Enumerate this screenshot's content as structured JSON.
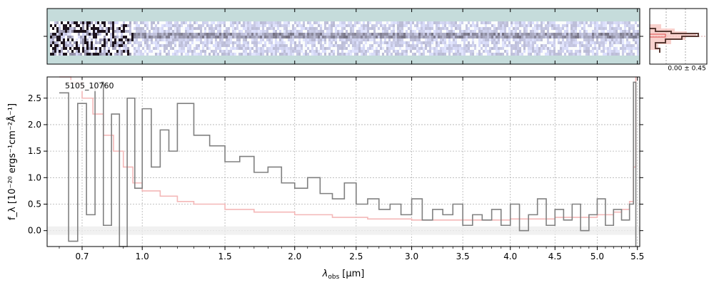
{
  "chart_data": {
    "type": "line",
    "object_label": "5105_10760",
    "xlabel_main": "λ",
    "xlabel_sub": "obs",
    "xlabel_unit": "[μm]",
    "ylabel": "f_λ [10⁻²⁰ ergs⁻¹cm⁻²Å⁻¹]",
    "xscale": "power-0.5",
    "xlim": [
      0.55,
      5.53
    ],
    "ylim": [
      -0.3,
      2.9
    ],
    "grid": true,
    "x_ticks": [
      {
        "v": 0.7,
        "label": "0.7"
      },
      {
        "v": 1.0,
        "label": "1.0"
      },
      {
        "v": 1.5,
        "label": "1.5"
      },
      {
        "v": 2.0,
        "label": "2.0"
      },
      {
        "v": 2.5,
        "label": "2.5"
      },
      {
        "v": 3.0,
        "label": "3.0"
      },
      {
        "v": 3.5,
        "label": "3.5"
      },
      {
        "v": 4.0,
        "label": "4.0"
      },
      {
        "v": 4.5,
        "label": "4.5"
      },
      {
        "v": 5.0,
        "label": "5.0"
      },
      {
        "v": 5.5,
        "label": "5.5"
      }
    ],
    "y_ticks": [
      {
        "v": 0.0,
        "label": "0.0"
      },
      {
        "v": 0.5,
        "label": "0.5"
      },
      {
        "v": 1.0,
        "label": "1.0"
      },
      {
        "v": 1.5,
        "label": "1.5"
      },
      {
        "v": 2.0,
        "label": "2.0"
      },
      {
        "v": 2.5,
        "label": "2.5"
      }
    ],
    "series": [
      {
        "role": "flux",
        "color": "#808080",
        "x": [
          0.6,
          0.64,
          0.68,
          0.72,
          0.76,
          0.8,
          0.84,
          0.88,
          0.92,
          0.96,
          1.0,
          1.05,
          1.1,
          1.15,
          1.2,
          1.3,
          1.4,
          1.5,
          1.6,
          1.7,
          1.8,
          1.9,
          2.0,
          2.1,
          2.2,
          2.3,
          2.4,
          2.5,
          2.6,
          2.7,
          2.8,
          2.9,
          3.0,
          3.1,
          3.2,
          3.3,
          3.4,
          3.5,
          3.6,
          3.7,
          3.8,
          3.9,
          4.0,
          4.1,
          4.2,
          4.3,
          4.4,
          4.5,
          4.6,
          4.7,
          4.8,
          4.9,
          5.0,
          5.1,
          5.2,
          5.3,
          5.4,
          5.45,
          5.48
        ],
        "y": [
          2.6,
          -0.2,
          2.4,
          0.3,
          2.8,
          0.1,
          2.2,
          -0.3,
          2.5,
          0.8,
          2.3,
          1.2,
          1.9,
          1.5,
          2.4,
          1.8,
          1.6,
          1.3,
          1.4,
          1.1,
          1.2,
          0.9,
          0.8,
          1.0,
          0.7,
          0.6,
          0.9,
          0.5,
          0.6,
          0.4,
          0.5,
          0.3,
          0.6,
          0.2,
          0.4,
          0.3,
          0.5,
          0.1,
          0.3,
          0.2,
          0.4,
          0.1,
          0.5,
          0.0,
          0.3,
          0.6,
          0.1,
          0.4,
          0.2,
          0.5,
          0.0,
          0.3,
          0.6,
          0.1,
          0.4,
          0.2,
          0.5,
          2.8,
          -0.3
        ]
      },
      {
        "role": "error",
        "color": "#f4b8b8",
        "x": [
          0.6,
          0.65,
          0.7,
          0.75,
          0.8,
          0.85,
          0.9,
          0.95,
          1.0,
          1.1,
          1.2,
          1.3,
          1.5,
          1.7,
          2.0,
          2.3,
          2.6,
          3.0,
          3.5,
          4.0,
          4.5,
          5.0,
          5.2,
          5.3,
          5.4,
          5.45,
          5.48
        ],
        "y": [
          2.9,
          2.8,
          2.5,
          2.2,
          1.8,
          1.5,
          1.2,
          0.9,
          0.75,
          0.65,
          0.55,
          0.5,
          0.4,
          0.35,
          0.3,
          0.25,
          0.22,
          0.2,
          0.2,
          0.22,
          0.25,
          0.3,
          0.35,
          0.4,
          0.55,
          1.2,
          2.9
        ]
      }
    ],
    "zero_band": [
      -0.08,
      0.08
    ]
  },
  "histogram": {
    "label": "0.00 ± 0.45"
  },
  "colors": {
    "flux": "#808080",
    "error": "#f4b8b8",
    "hist_dark": "#5a3a34",
    "hist_light": "#f6c6c0",
    "twod_bg": "#c5dcdb"
  }
}
